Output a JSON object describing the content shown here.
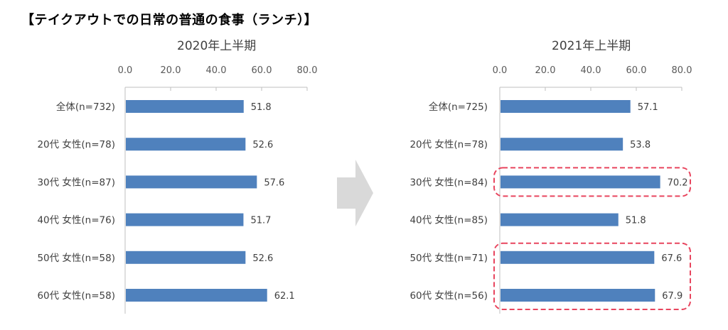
{
  "page_title": "【テイクアウトでの日常の普通の食事（ランチ）】",
  "colors": {
    "bar": "#4f81bd",
    "highlight": "#e8455e",
    "arrow": "#d9d9d9",
    "axis": "#bfbfbf"
  },
  "chart_data": [
    {
      "type": "bar",
      "orientation": "horizontal",
      "title": "2020年上半期",
      "categories": [
        "全体(n=732)",
        "20代 女性(n=78)",
        "30代 女性(n=87)",
        "40代 女性(n=76)",
        "50代 女性(n=58)",
        "60代 女性(n=58)"
      ],
      "values": [
        51.8,
        52.6,
        57.6,
        51.7,
        52.6,
        62.1
      ],
      "value_labels": [
        "51.8",
        "52.6",
        "57.6",
        "51.7",
        "52.6",
        "62.1"
      ],
      "ticks": [
        "0.0",
        "20.0",
        "40.0",
        "60.0",
        "80.0"
      ],
      "xlim": [
        0,
        80
      ],
      "highlighted_groups": []
    },
    {
      "type": "bar",
      "orientation": "horizontal",
      "title": "2021年上半期",
      "categories": [
        "全体(n=725)",
        "20代 女性(n=78)",
        "30代 女性(n=84)",
        "40代 女性(n=85)",
        "50代 女性(n=71)",
        "60代 女性(n=56)"
      ],
      "values": [
        57.1,
        53.8,
        70.2,
        51.8,
        67.6,
        67.9
      ],
      "value_labels": [
        "57.1",
        "53.8",
        "70.2",
        "51.8",
        "67.6",
        "67.9"
      ],
      "ticks": [
        "0.0",
        "20.0",
        "40.0",
        "60.0",
        "80.0"
      ],
      "xlim": [
        0,
        80
      ],
      "highlighted_groups": [
        [
          2
        ],
        [
          4,
          5
        ]
      ]
    }
  ]
}
